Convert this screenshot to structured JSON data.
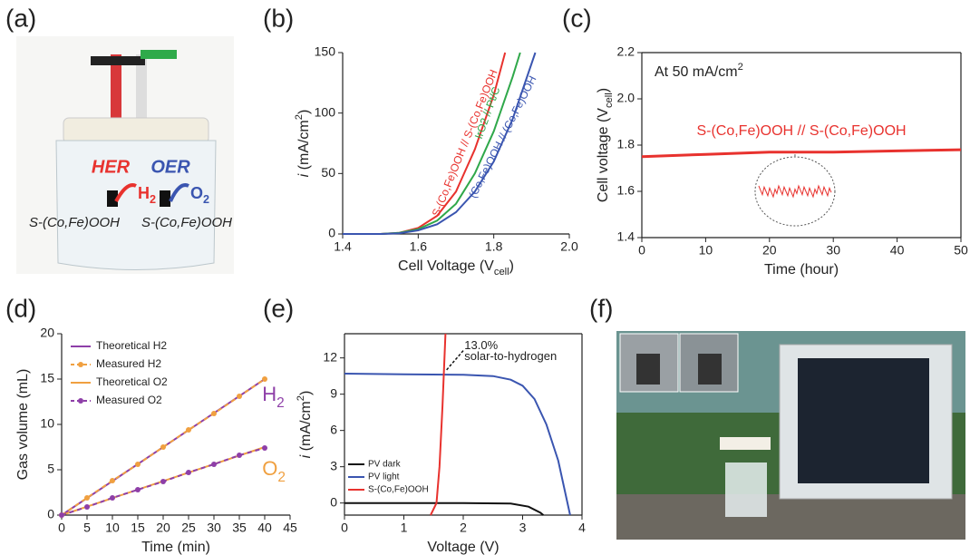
{
  "panels": [
    "(a)",
    "(b)",
    "(c)",
    "(d)",
    "(e)",
    "(f)"
  ],
  "photo_a": {
    "her": "HER",
    "oer": "OER",
    "h2": [
      {
        "t": "H"
      },
      {
        "sub": "2"
      }
    ],
    "o2": [
      {
        "t": "O"
      },
      {
        "sub": "2"
      }
    ],
    "left_electrode": "S-(Co,Fe)OOH",
    "right_electrode": "S-(Co,Fe)OOH"
  },
  "chart_data": [
    {
      "type": "line",
      "frame": "axes",
      "xlabel": [
        {
          "t": "Cell Voltage (V"
        },
        {
          "sub": "cell"
        },
        {
          "t": ")"
        }
      ],
      "ylabel": [
        {
          "i": "i"
        },
        {
          "t": " (mA/cm"
        },
        {
          "sup": "2"
        },
        {
          "t": ")"
        }
      ],
      "xlim": [
        1.4,
        2.0
      ],
      "xticks": [
        1.4,
        1.6,
        1.8,
        {
          "value": 2.0,
          "label": "2.0"
        }
      ],
      "ylim": [
        0,
        150
      ],
      "yticks": [
        0,
        50,
        100,
        150
      ],
      "series": [
        {
          "name": "S-(Co,Fe)OOH // S-(Co,Fe)OOH",
          "color": "#e8322e",
          "x": [
            1.4,
            1.5,
            1.55,
            1.6,
            1.65,
            1.7,
            1.75,
            1.8,
            1.83
          ],
          "values": [
            0,
            0,
            1,
            5,
            15,
            35,
            70,
            115,
            150
          ]
        },
        {
          "name": "IrO2 // Pt/C",
          "color": "#2fa84a",
          "x": [
            1.4,
            1.5,
            1.55,
            1.6,
            1.65,
            1.7,
            1.75,
            1.8,
            1.85,
            1.87
          ],
          "values": [
            0,
            0,
            1,
            4,
            11,
            25,
            50,
            85,
            130,
            150
          ]
        },
        {
          "name": "(Co,Fe)OOH // (Co,Fe)OOH",
          "color": "#3a55b0",
          "x": [
            1.4,
            1.5,
            1.55,
            1.6,
            1.65,
            1.7,
            1.75,
            1.8,
            1.85,
            1.91
          ],
          "values": [
            0,
            0,
            0.5,
            3,
            8,
            18,
            35,
            60,
            95,
            150
          ]
        }
      ]
    },
    {
      "type": "line",
      "frame": "box",
      "annotation": [
        {
          "t": "At 50 mA/cm"
        },
        {
          "sup": "2"
        }
      ],
      "xlabel": "Time (hour)",
      "ylabel": [
        {
          "t": "Cell voltage (V"
        },
        {
          "sub": "cell"
        },
        {
          "t": ")"
        }
      ],
      "xlim": [
        0,
        50
      ],
      "xticks": [
        0,
        10,
        20,
        30,
        40,
        50
      ],
      "ylim": [
        1.4,
        2.2
      ],
      "yticks": [
        1.4,
        1.6,
        1.8,
        {
          "value": 2.0,
          "label": "2.0"
        },
        2.2
      ],
      "series": [
        {
          "name": "S-(Co,Fe)OOH // S-(Co,Fe)OOH",
          "color": "#e8322e",
          "x": [
            0,
            10,
            20,
            30,
            40,
            50
          ],
          "values": [
            1.75,
            1.76,
            1.77,
            1.77,
            1.775,
            1.78
          ]
        }
      ]
    },
    {
      "type": "line",
      "frame": "axes",
      "legend": "upper left",
      "labels": [
        [
          {
            "t": "H"
          },
          {
            "sub": "2"
          }
        ],
        [
          {
            "t": "O"
          },
          {
            "sub": "2"
          }
        ]
      ],
      "xlabel": "Time (min)",
      "ylabel": "Gas volume (mL)",
      "xlim": [
        0,
        45
      ],
      "xticks": [
        0,
        5,
        10,
        15,
        20,
        25,
        30,
        35,
        40,
        45
      ],
      "ylim": [
        0,
        20
      ],
      "yticks": [
        0,
        5,
        10,
        15,
        20
      ],
      "series": [
        {
          "name": "Theoretical H2",
          "color": "#8e3fa8",
          "x": [
            0,
            40
          ],
          "values": [
            0,
            15
          ]
        },
        {
          "name": "Measured H2",
          "color": "#f0a040",
          "dash": true,
          "marker": true,
          "x": [
            0,
            5,
            10,
            15,
            20,
            25,
            30,
            35,
            40
          ],
          "values": [
            0,
            1.9,
            3.8,
            5.6,
            7.5,
            9.4,
            11.2,
            13.1,
            15
          ]
        },
        {
          "name": "Theoretical O2",
          "color": "#f0a040",
          "x": [
            0,
            40
          ],
          "values": [
            0,
            7.5
          ]
        },
        {
          "name": "Measured O2",
          "color": "#8e3fa8",
          "dash": true,
          "marker": true,
          "x": [
            0,
            5,
            10,
            15,
            20,
            25,
            30,
            35,
            40
          ],
          "values": [
            0,
            0.9,
            1.9,
            2.8,
            3.7,
            4.7,
            5.6,
            6.6,
            7.4
          ]
        }
      ]
    },
    {
      "type": "line",
      "frame": "box",
      "legend": "lower left",
      "annotation": [
        "13.0%",
        "solar-to-hydrogen"
      ],
      "xlabel": "Voltage (V)",
      "ylabel": [
        {
          "i": "i"
        },
        {
          "t": " (mA/cm"
        },
        {
          "sup": "2"
        },
        {
          "t": ")"
        }
      ],
      "xlim": [
        0,
        4
      ],
      "xticks": [
        0,
        1,
        2,
        3,
        4
      ],
      "ylim": [
        -1,
        14
      ],
      "yticks": [
        0,
        3,
        6,
        9,
        12
      ],
      "series": [
        {
          "name": "PV dark",
          "color": "#111111",
          "x": [
            0,
            1,
            2,
            2.8,
            3.1,
            3.3,
            3.35
          ],
          "values": [
            0,
            0,
            0,
            -0.05,
            -0.3,
            -0.8,
            -1
          ]
        },
        {
          "name": "PV light",
          "color": "#3a55b0",
          "x": [
            0,
            1,
            2,
            2.5,
            2.8,
            3.0,
            3.2,
            3.4,
            3.6,
            3.8
          ],
          "values": [
            10.7,
            10.65,
            10.6,
            10.5,
            10.2,
            9.7,
            8.6,
            6.5,
            3.5,
            -1
          ]
        },
        {
          "name": "S-(Co,Fe)OOH",
          "color": "#e8322e",
          "x": [
            1.45,
            1.55,
            1.6,
            1.65,
            1.7
          ],
          "values": [
            -1,
            0,
            3,
            8,
            14
          ]
        }
      ]
    }
  ]
}
